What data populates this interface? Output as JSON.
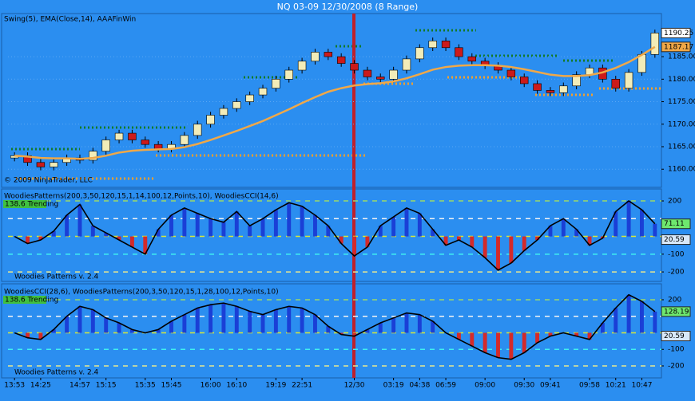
{
  "title": "NQ 03-09  12/30/2008 (8 Range)",
  "chart_data": [
    {
      "type": "candlestick",
      "label": "Swing(5), EMA(Close,14), AAAFinWin",
      "copyright": "© 2009 NinjaTrader, LLC",
      "open": [
        1162.5,
        1163,
        1161.5,
        1160.5,
        1161.5,
        1162.5,
        1162,
        1164,
        1166.5,
        1168,
        1166.5,
        1165.5,
        1164.5,
        1165.5,
        1167.5,
        1170,
        1172,
        1173.5,
        1175,
        1176.5,
        1178,
        1180,
        1182,
        1184,
        1186,
        1185,
        1183.5,
        1182,
        1180.5,
        1180,
        1182,
        1184.5,
        1187,
        1188.5,
        1187,
        1185,
        1184,
        1183,
        1182,
        1180.5,
        1179,
        1177.5,
        1177,
        1178.5,
        1181,
        1182.5,
        1180,
        1178,
        1181.5,
        1185.5
      ],
      "high": [
        1163.75,
        1163.75,
        1162.25,
        1162.25,
        1163.25,
        1163.25,
        1164.75,
        1167.25,
        1168.75,
        1168.75,
        1167.25,
        1166.25,
        1166.25,
        1168.25,
        1170.75,
        1172.75,
        1174.25,
        1175.75,
        1177.25,
        1178.75,
        1180.75,
        1182.75,
        1184.75,
        1186.75,
        1186.75,
        1185.75,
        1184.25,
        1182.75,
        1181.25,
        1182.75,
        1185.25,
        1187.75,
        1189.25,
        1189.25,
        1187.75,
        1185.75,
        1184.75,
        1183.75,
        1182.75,
        1181.25,
        1179.75,
        1178.25,
        1179.25,
        1181.75,
        1183.25,
        1183.25,
        1180.75,
        1182.25,
        1186.25,
        1191
      ],
      "low": [
        1161.75,
        1160.75,
        1159.75,
        1159.75,
        1160.75,
        1161.25,
        1161.25,
        1163.25,
        1165.75,
        1165.75,
        1164.75,
        1163.75,
        1163.75,
        1164.75,
        1166.75,
        1169.25,
        1171.25,
        1172.75,
        1174.25,
        1175.75,
        1177.25,
        1179.25,
        1181.25,
        1183.25,
        1184.25,
        1182.75,
        1181.25,
        1179.75,
        1179.25,
        1179.25,
        1181.25,
        1183.75,
        1186.25,
        1186.25,
        1184.25,
        1183.25,
        1182.25,
        1181.25,
        1179.75,
        1178.25,
        1176.75,
        1176.25,
        1176.25,
        1177.75,
        1180.25,
        1179.25,
        1177.25,
        1177.25,
        1180.75,
        1184.75
      ],
      "close": [
        1163,
        1161.5,
        1160.5,
        1161.5,
        1162.5,
        1162,
        1164,
        1166.5,
        1168,
        1166.5,
        1165.5,
        1164.5,
        1165.5,
        1167.5,
        1170,
        1172,
        1173.5,
        1175,
        1176.5,
        1178,
        1180,
        1182,
        1184,
        1186,
        1185,
        1183.5,
        1182,
        1180.5,
        1180,
        1182,
        1184.5,
        1187,
        1188.5,
        1187,
        1185,
        1184,
        1183,
        1182,
        1180.5,
        1179,
        1177.5,
        1177,
        1178.5,
        1181,
        1182.5,
        1180,
        1178,
        1181.5,
        1185.5,
        1190.25
      ],
      "up_color": "#f2ecb8",
      "down_color": "#cc1a1a",
      "ema": {
        "color": "#f0a848",
        "values": [
          1163,
          1162.8,
          1162.5,
          1162.4,
          1162.4,
          1162.3,
          1162.5,
          1163,
          1163.7,
          1164.1,
          1164.3,
          1164.4,
          1164.5,
          1164.9,
          1165.6,
          1166.5,
          1167.5,
          1168.5,
          1169.6,
          1170.7,
          1172,
          1173.3,
          1174.7,
          1176,
          1177.2,
          1178,
          1178.6,
          1178.9,
          1179.1,
          1179.5,
          1180.2,
          1181.1,
          1182.1,
          1182.7,
          1183,
          1183.1,
          1183.1,
          1183,
          1182.7,
          1182.2,
          1181.6,
          1181,
          1180.7,
          1180.7,
          1180.9,
          1181.5,
          1182.5,
          1183.8,
          1185.4,
          1187.17
        ]
      },
      "last_close_label": "1190.25",
      "ema_label": "1187.17",
      "ylim": [
        1156.5,
        1194.4
      ],
      "yticks": [
        {
          "value": 1160,
          "label": "1160.00"
        },
        {
          "value": 1165,
          "label": "1165.00"
        },
        {
          "value": 1170,
          "label": "1170.00"
        },
        {
          "value": 1175,
          "label": "1175.00"
        },
        {
          "value": 1180,
          "label": "1180.00"
        },
        {
          "value": 1185,
          "label": "1185.00"
        }
      ],
      "grid": true
    },
    {
      "type": "cci",
      "label": "WoodiesPatterns(200,3,50,120,15,1,14,100,12,Points,10), WoodiesCCI(14,6)",
      "badge": "138.6 Trending",
      "footer": "Woodies Patterns v. 2.4",
      "values": [
        0,
        -40,
        -20,
        30,
        120,
        180,
        60,
        20,
        -20,
        -60,
        -100,
        40,
        120,
        160,
        130,
        100,
        80,
        140,
        60,
        100,
        150,
        190,
        170,
        120,
        60,
        -40,
        -110,
        -60,
        60,
        110,
        160,
        130,
        40,
        -50,
        -20,
        -60,
        -120,
        -190,
        -150,
        -80,
        -20,
        60,
        100,
        40,
        -50,
        -10,
        140,
        200,
        150,
        71.11
      ],
      "last_label": "71.11",
      "side_label": "20.59",
      "line_color": "#000000",
      "color": "#1a3fd6",
      "neg_color": "#d42a2a",
      "levels": [
        200,
        100,
        0,
        -100,
        -200
      ],
      "level_colors": [
        "#9ad86a",
        "#f4f4f4",
        "#d8e838",
        "#40f0f0",
        "#e8e890"
      ],
      "ylim": [
        -240,
        254
      ],
      "yticks": [
        200,
        -100,
        -200
      ]
    },
    {
      "type": "cci",
      "label": "WoodiesCCI(28,6), WoodiesPatterns(200,3,50,120,15,1,28,100,12,Points,10)",
      "badge": "138.6 Trending",
      "footer": "Woodies Patterns v. 2.4",
      "values": [
        0,
        -30,
        -40,
        20,
        100,
        160,
        140,
        90,
        60,
        20,
        0,
        20,
        70,
        110,
        150,
        170,
        180,
        160,
        130,
        110,
        140,
        160,
        150,
        110,
        40,
        -10,
        -20,
        20,
        60,
        90,
        120,
        110,
        70,
        0,
        -40,
        -80,
        -120,
        -150,
        -160,
        -120,
        -60,
        -20,
        0,
        -20,
        -40,
        60,
        150,
        230,
        190,
        128.19
      ],
      "last_label": "128.19",
      "side_label": "20.59",
      "line_color": "#000000",
      "color": "#1a3fd6",
      "neg_color": "#d42a2a",
      "levels": [
        200,
        100,
        0,
        -100,
        -200
      ],
      "level_colors": [
        "#9ad86a",
        "#f4f4f4",
        "#d8e838",
        "#40f0f0",
        "#e8e890"
      ],
      "ylim": [
        -253,
        277
      ],
      "yticks": [
        200,
        -100,
        -200
      ],
      "categories": [
        "13:53",
        null,
        "14:25",
        null,
        null,
        "14:57",
        null,
        "15:15",
        null,
        null,
        "15:35",
        null,
        "15:45",
        null,
        null,
        "16:00",
        null,
        "16:10",
        null,
        null,
        "19:19",
        null,
        "22:51",
        null,
        null,
        null,
        "12/30",
        null,
        null,
        "03:19",
        null,
        "04:38",
        null,
        "06:59",
        null,
        null,
        "09:00",
        null,
        null,
        "09:30",
        null,
        "09:41",
        null,
        null,
        "09:58",
        null,
        "10:21",
        null,
        "10:47",
        null
      ]
    }
  ]
}
